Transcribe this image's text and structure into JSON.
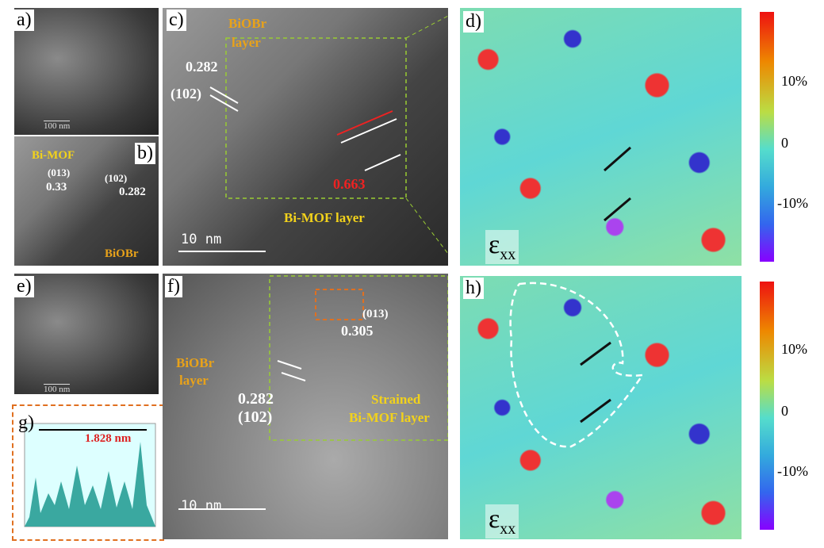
{
  "panels": {
    "a": {
      "label": "a)",
      "scale_bar": "100 nm"
    },
    "b": {
      "label": "b)",
      "texts": [
        "Bi-MOF",
        "(013)",
        "0.33",
        "(102)",
        "0.282",
        "BiOBr"
      ]
    },
    "c": {
      "label": "c)",
      "texts": [
        "BiOBr",
        "layer",
        "0.282",
        "(102)",
        "0.663",
        "Bi-MOF layer"
      ],
      "scale_bar": "10 nm"
    },
    "d": {
      "label": "d)",
      "symbol": "ε",
      "subscript": "xx",
      "colorbar": [
        "10%",
        "0",
        "-10%"
      ]
    },
    "e": {
      "label": "e)",
      "scale_bar": "100 nm"
    },
    "f": {
      "label": "f)",
      "texts": [
        "(013)",
        "0.305",
        "BiOBr",
        "layer",
        "0.282",
        "(102)",
        "Strained",
        "Bi-MOF layer"
      ],
      "scale_bar": "10 nm"
    },
    "g": {
      "label": "g)",
      "distance": "1.828 nm"
    },
    "h": {
      "label": "h)",
      "symbol": "ε",
      "subscript": "xx",
      "colorbar": [
        "10%",
        "0",
        "-10%"
      ]
    }
  }
}
